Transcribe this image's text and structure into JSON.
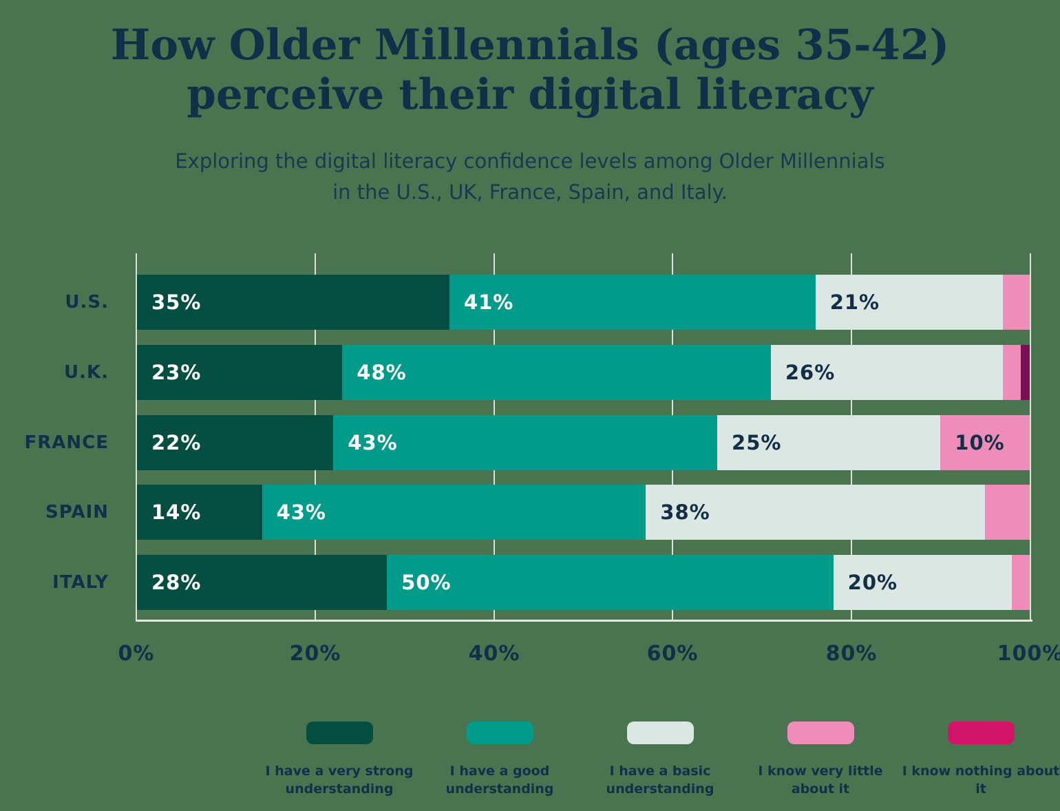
{
  "page": {
    "background": "#4a7350"
  },
  "header": {
    "title_line1": "How Older Millennials (ages 35-42)",
    "title_line2": "perceive their digital literacy",
    "subtitle_line1": "Exploring the digital literacy confidence levels among Older Millennials",
    "subtitle_line2": "in the U.S., UK, France, Spain, and Italy."
  },
  "chart_data": {
    "type": "bar",
    "variant": "horizontal_stacked",
    "title": "How Older Millennials (ages 35-42) perceive their digital literacy",
    "subtitle": "Exploring the digital literacy confidence levels among Older Millennials in the U.S., UK, France, Spain, and Italy.",
    "categories": [
      "U.S.",
      "U.K.",
      "FRANCE",
      "SPAIN",
      "ITALY"
    ],
    "series": [
      {
        "name": "I have a very strong understanding",
        "color": "#034e40",
        "label_color": "#ffffff",
        "values": [
          35,
          23,
          22,
          14,
          28
        ]
      },
      {
        "name": "I have a good understanding",
        "color": "#029b8a",
        "label_color": "#ffffff",
        "values": [
          41,
          48,
          43,
          43,
          50
        ]
      },
      {
        "name": "I have a basic understanding",
        "color": "#dae7e3",
        "label_color": "#132e46",
        "values": [
          21,
          26,
          25,
          38,
          20
        ]
      },
      {
        "name": "I know very little about it",
        "color": "#ee8cba",
        "label_color": "#132e46",
        "values": [
          3,
          2,
          10,
          5,
          2
        ]
      },
      {
        "name": "I know nothing about it",
        "color": "#7a1053",
        "legend_color": "#d21468",
        "label_color": "#ffffff",
        "values": [
          0,
          1,
          0,
          0,
          0
        ]
      }
    ],
    "x_ticks": [
      "0%",
      "20%",
      "40%",
      "60%",
      "80%",
      "100%"
    ],
    "xlim": [
      0,
      100
    ],
    "value_suffix": "%",
    "value_label_min": 10,
    "grid": true,
    "legend_position": "bottom",
    "colors": {
      "background": "#4a7350",
      "gridline": "#d9e1d8",
      "axis_line": "#e3eae2",
      "text_dark": "#123049",
      "text_light": "#ffffff"
    }
  }
}
